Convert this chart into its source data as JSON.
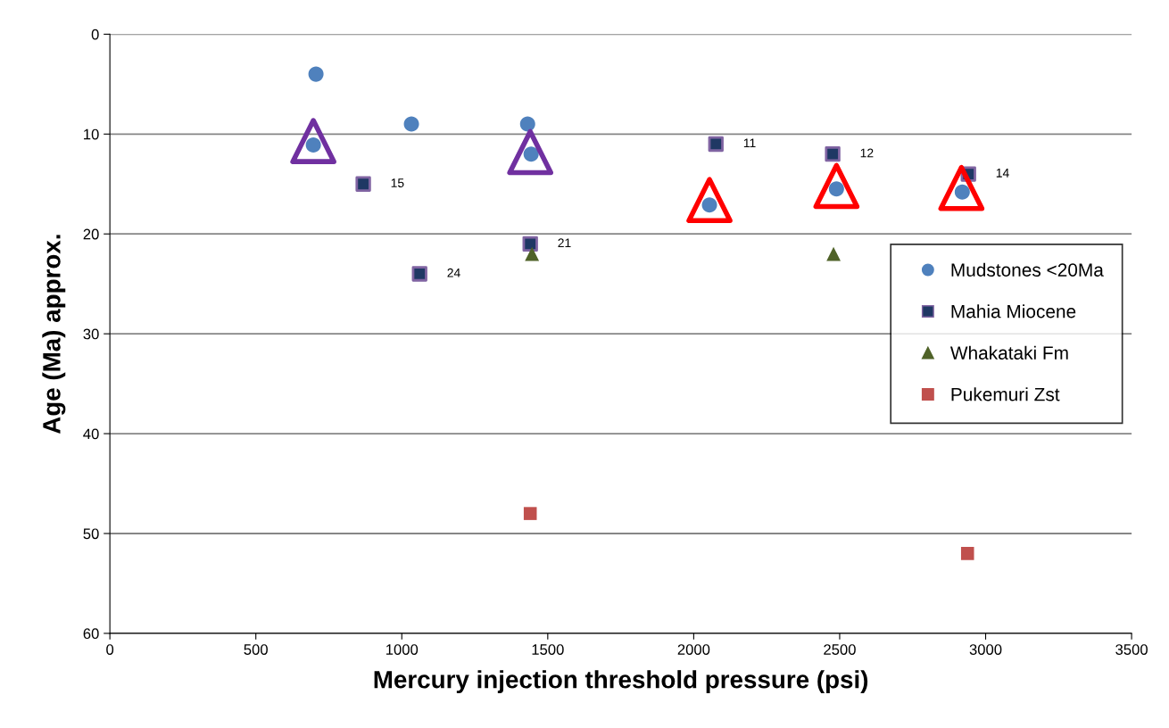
{
  "chart_data": {
    "type": "scatter",
    "xlabel": "Mercury injection threshold pressure (psi)",
    "ylabel": "Age (Ma) approx.",
    "xlim": [
      0,
      3500
    ],
    "xticks": [
      0,
      500,
      1000,
      1500,
      2000,
      2500,
      3000,
      3500
    ],
    "ylim": [
      60,
      0
    ],
    "yticks": [
      0,
      10,
      20,
      30,
      40,
      50,
      60
    ],
    "grid": "y",
    "legend": "right",
    "series": [
      {
        "name": "Mudstones <20Ma",
        "color": "#4f81bd",
        "marker": "circle",
        "x": [
          706,
          697,
          1033,
          1431,
          1443,
          2054,
          2489,
          2920
        ],
        "values": [
          4,
          11.1,
          9,
          9,
          12,
          17.1,
          15.5,
          15.8
        ]
      },
      {
        "name": "Mahia Miocene",
        "color": "#1f3864",
        "marker": "square",
        "x": [
          868,
          1061,
          1440,
          2076,
          2476,
          2941
        ],
        "values": [
          15,
          24,
          21,
          11,
          12,
          14
        ],
        "value_labels": [
          "15",
          "24",
          "21",
          "11",
          "12",
          "14"
        ]
      },
      {
        "name": "Whakataki Fm",
        "color": "#4f6228",
        "marker": "triangle",
        "x": [
          1446,
          2479
        ],
        "values": [
          22,
          22
        ]
      },
      {
        "name": "Pukemuri Zst",
        "color": "#c0504d",
        "marker": "square",
        "x": [
          1440,
          2938
        ],
        "values": [
          48,
          52
        ]
      },
      {
        "color": "#7030a0",
        "marker": "triangle",
        "x": [
          697,
          1440
        ],
        "values": [
          10.7,
          11.8
        ]
      },
      {
        "color": "#ff0000",
        "marker": "triangle",
        "x": [
          2054,
          2489,
          2917
        ],
        "values": [
          16.6,
          15.2,
          15.4
        ]
      }
    ]
  }
}
